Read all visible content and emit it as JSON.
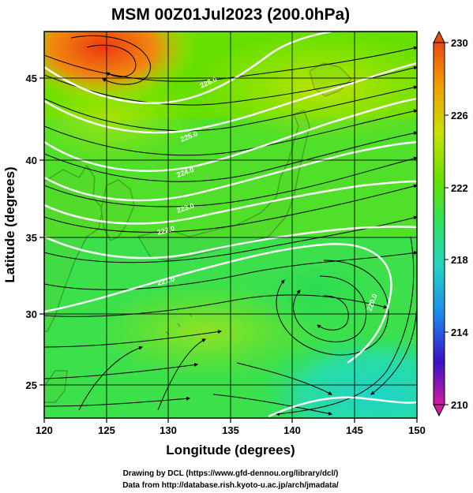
{
  "title": "MSM 00Z01Jul2023 (200.0hPa)",
  "x_axis": {
    "label": "Longitude (degrees)",
    "range": [
      120,
      150
    ],
    "ticks": [
      "120",
      "125",
      "130",
      "135",
      "140",
      "145",
      "150"
    ]
  },
  "y_axis": {
    "label": "Latitude  (degrees)",
    "range": [
      22.4,
      47.6
    ],
    "ticks": [
      "25",
      "30",
      "35",
      "40",
      "45"
    ]
  },
  "colorbar": {
    "range": [
      210,
      230
    ],
    "ticks": [
      "230",
      "226",
      "222",
      "218",
      "214",
      "210"
    ],
    "colors": [
      "#d21c9e",
      "#3a10c8",
      "#1c88ee",
      "#22d4c4",
      "#2ee062",
      "#66e000",
      "#c8e200",
      "#f0a000",
      "#ee4a10"
    ]
  },
  "contour_labels": [
    "226.0",
    "225.0",
    "224.0",
    "223.0",
    "222.0",
    "221.0",
    "220.0"
  ],
  "credits": {
    "line1": "Drawing by DCL (https://www.gfd-dennou.org/library/dcl/)",
    "line2": "Data from http://database.rish.kyoto-u.ac.jp/arch/jmadata/"
  },
  "map": {
    "field": "temperature (K), 200 hPa",
    "overlay": "wind streamlines",
    "coastlines": "Japan, Korea, eastern China"
  }
}
